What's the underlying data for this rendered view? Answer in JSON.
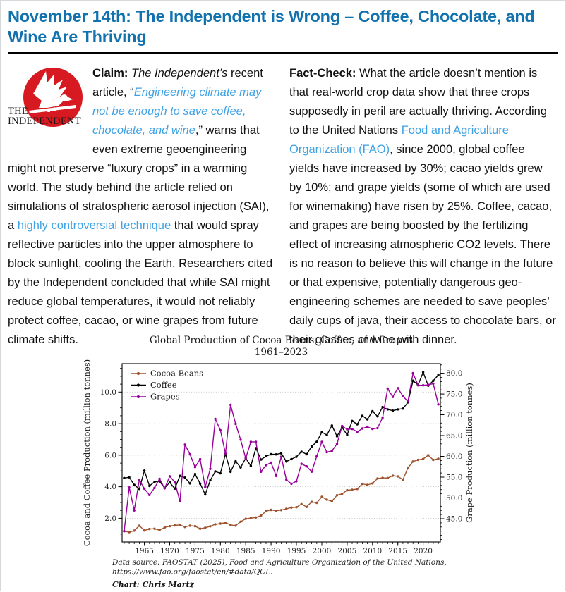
{
  "page": {
    "title": "November 14th: The Independent is Wrong – Coffee, Chocolate, and Wine Are Thriving"
  },
  "logo": {
    "line1": "THE",
    "line2": "INDEPENDENT",
    "circle_color": "#d71a21",
    "icon": "eagle-icon"
  },
  "colors": {
    "headline": "#1272ae",
    "link": "#3ea2e5",
    "body_text": "#111111",
    "divider": "#000000"
  },
  "claim": {
    "segments": [
      {
        "t": "Claim: ",
        "b": true
      },
      {
        "t": "The Independent’s",
        "i": true
      },
      {
        "t": " recent article, “"
      },
      {
        "t": "Engineering climate may not be enough to save coffee, chocolate, and wine",
        "i": true,
        "link": true,
        "name": "article-title-link"
      },
      {
        "t": ",” warns that even extreme geoengineering might not preserve “luxury crops” in a warming world. The study behind the article relied on simulations of stratospheric aerosol injection (SAI), a "
      },
      {
        "t": "highly controversial technique",
        "link": true,
        "name": "controversial-technique-link"
      },
      {
        "t": " that would spray reflective particles into the upper atmosphere to block sunlight, cooling the Earth. Researchers cited by the Independent concluded that while SAI might reduce global temperatures, it would not reliably protect coffee, cacao, or wine grapes from future climate shifts."
      }
    ]
  },
  "fact_check": {
    "segments": [
      {
        "t": "Fact-Check: ",
        "b": true
      },
      {
        "t": "What the article doesn’t mention is that real-world crop data show that three crops supposedly in peril are actually thriving. According to the United Nations "
      },
      {
        "t": "Food and Agriculture Organization (FAO)",
        "link": true,
        "name": "fao-link"
      },
      {
        "t": ", since 2000, global coffee yields have increased by 30%; cacao yields grew by 10%; and grape yields (some of which are used for winemaking) have risen by 25%. Coffee, cacao, and grapes are being boosted by the fertilizing effect of increasing atmospheric CO2 levels. There is no reason to believe this will change in the future or that expensive, potentially dangerous geo-engineering schemes are needed to save peoples’ daily cups of java, their access to chocolate bars, or their glasses of wine with dinner."
      }
    ]
  },
  "chart_data": {
    "type": "line",
    "title": "Global Production of Cocoa Beans, Coffee, and Grapes",
    "subtitle": "1961–2023",
    "ylabel_left": "Cocoa and Coffee Production (million tonnes)",
    "ylabel_right": "Grape Production (million tonnes)",
    "xlabel": "",
    "legend_position": "upper-left",
    "grid": "horizontal-dotted-at-left-ticks",
    "xticks": [
      1965,
      1970,
      1975,
      1980,
      1985,
      1990,
      1995,
      2000,
      2005,
      2010,
      2015,
      2020
    ],
    "xlim": [
      1960.6,
      2023.4
    ],
    "yticks_left": [
      2.0,
      4.0,
      6.0,
      8.0,
      10.0
    ],
    "ylim_left": [
      0.5,
      11.8
    ],
    "yticks_right": [
      45.0,
      50.0,
      55.0,
      60.0,
      65.0,
      70.0,
      75.0,
      80.0
    ],
    "ylim_right": [
      39.4,
      82.3
    ],
    "x": [
      1961,
      1962,
      1963,
      1964,
      1965,
      1966,
      1967,
      1968,
      1969,
      1970,
      1971,
      1972,
      1973,
      1974,
      1975,
      1976,
      1977,
      1978,
      1979,
      1980,
      1981,
      1982,
      1983,
      1984,
      1985,
      1986,
      1987,
      1988,
      1989,
      1990,
      1991,
      1992,
      1993,
      1994,
      1995,
      1996,
      1997,
      1998,
      1999,
      2000,
      2001,
      2002,
      2003,
      2004,
      2005,
      2006,
      2007,
      2008,
      2009,
      2010,
      2011,
      2012,
      2013,
      2014,
      2015,
      2016,
      2017,
      2018,
      2019,
      2020,
      2021,
      2022,
      2023
    ],
    "series": [
      {
        "name": "Cocoa Beans",
        "axis": "left",
        "color": "#a0522d",
        "values": [
          1.19,
          1.12,
          1.22,
          1.53,
          1.23,
          1.32,
          1.34,
          1.25,
          1.42,
          1.5,
          1.55,
          1.58,
          1.45,
          1.53,
          1.5,
          1.34,
          1.4,
          1.49,
          1.62,
          1.66,
          1.72,
          1.58,
          1.53,
          1.78,
          1.97,
          2.01,
          2.05,
          2.17,
          2.45,
          2.53,
          2.48,
          2.52,
          2.6,
          2.68,
          2.7,
          2.9,
          2.72,
          3.04,
          2.98,
          3.36,
          3.18,
          3.08,
          3.46,
          3.55,
          3.78,
          3.81,
          3.86,
          4.18,
          4.12,
          4.21,
          4.52,
          4.56,
          4.55,
          4.7,
          4.66,
          4.45,
          5.2,
          5.6,
          5.7,
          5.76,
          6.0,
          5.7,
          5.78
        ]
      },
      {
        "name": "Coffee",
        "axis": "left",
        "color": "#000000",
        "values": [
          4.55,
          4.6,
          4.12,
          3.86,
          5.02,
          4.05,
          4.31,
          4.34,
          3.92,
          4.28,
          3.88,
          4.69,
          4.58,
          4.21,
          4.8,
          4.2,
          3.51,
          4.41,
          4.97,
          4.85,
          6.08,
          4.95,
          5.61,
          5.22,
          5.81,
          5.32,
          6.44,
          5.72,
          5.93,
          6.06,
          6.05,
          6.12,
          5.6,
          5.75,
          5.9,
          6.22,
          6.06,
          6.55,
          6.85,
          7.46,
          7.28,
          7.88,
          7.2,
          7.76,
          7.29,
          8.17,
          7.96,
          8.5,
          8.27,
          8.79,
          8.46,
          9.05,
          8.9,
          8.82,
          8.9,
          8.95,
          9.35,
          10.72,
          10.45,
          11.25,
          10.4,
          10.72,
          11.08
        ]
      },
      {
        "name": "Grapes",
        "axis": "right",
        "color": "#990099",
        "values": [
          42.0,
          52.5,
          47.0,
          54.3,
          52.2,
          50.7,
          52.4,
          54.6,
          52.3,
          55.2,
          53.8,
          49.2,
          62.8,
          60.5,
          57.4,
          59.3,
          52.6,
          57.0,
          69.0,
          66.3,
          60.7,
          72.4,
          67.8,
          64.0,
          59.5,
          63.5,
          63.5,
          56.3,
          57.9,
          58.5,
          55.3,
          59.9,
          54.4,
          53.4,
          54.0,
          58.2,
          57.6,
          56.3,
          60.0,
          63.5,
          61.0,
          61.3,
          63.0,
          67.3,
          66.5,
          66.6,
          65.9,
          66.7,
          67.1,
          66.6,
          66.8,
          69.3,
          76.3,
          74.3,
          76.4,
          74.5,
          73.2,
          80.0,
          77.1,
          77.1,
          77.2,
          77.5,
          72.5
        ]
      }
    ],
    "source_lines": [
      "Data source: FAOSTAT (2025), Food and Agriculture Organization of the United Nations,",
      "https://www.fao.org/faostat/en/#data/QCL."
    ],
    "credit": "Chart: Chris Martz"
  }
}
